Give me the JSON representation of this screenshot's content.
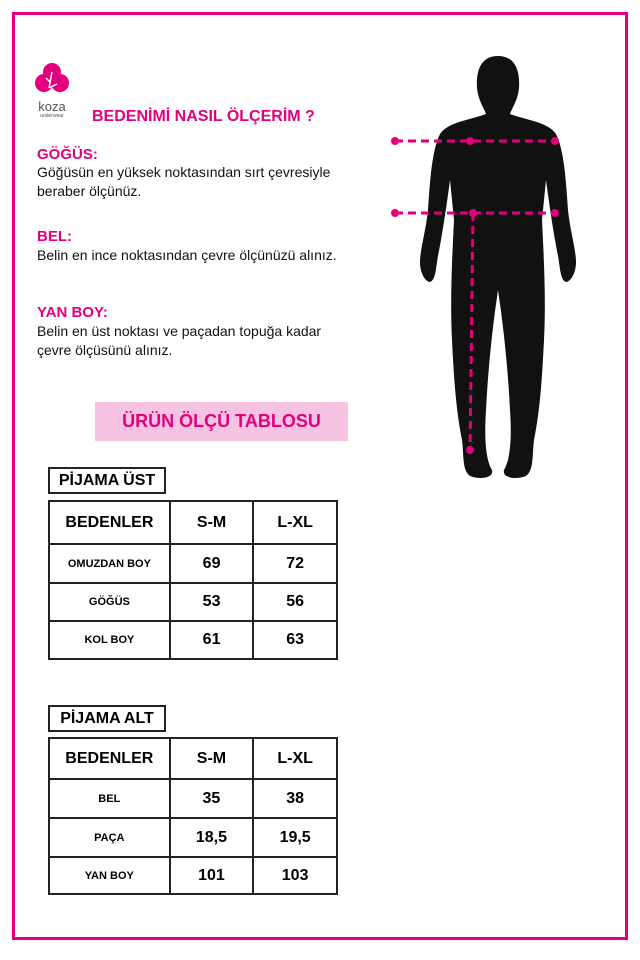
{
  "brand": {
    "logo_text": "koza",
    "logo_sub": "underwear",
    "color": "#e4007c"
  },
  "title": "BEDENİMİ NASIL ÖLÇERİM ?",
  "sections": [
    {
      "heading": "GÖĞÜS:",
      "lines": [
        "Göğüsün en yüksek noktasından sırt çevresiyle",
        "beraber ölçünüz."
      ]
    },
    {
      "heading": "BEL:",
      "lines": [
        "Belin en ince noktasından çevre ölçünüzü alınız."
      ]
    },
    {
      "heading": "YAN BOY:",
      "lines": [
        "Belin en üst noktası ve paçadan topuğa kadar",
        "çevre ölçüsünü alınız."
      ]
    }
  ],
  "banner": "ÜRÜN ÖLÇÜ TABLOSU",
  "tables": [
    {
      "title": "PİJAMA ÜST",
      "headers": [
        "BEDENLER",
        "S-M",
        "L-XL"
      ],
      "rows": [
        [
          "OMUZDAN BOY",
          "69",
          "72"
        ],
        [
          "GÖĞÜS",
          "53",
          "56"
        ],
        [
          "KOL BOY",
          "61",
          "63"
        ]
      ]
    },
    {
      "title": "PİJAMA ALT",
      "headers": [
        "BEDENLER",
        "S-M",
        "L-XL"
      ],
      "rows": [
        [
          "BEL",
          "35",
          "38"
        ],
        [
          "PAÇA",
          "18,5",
          "19,5"
        ],
        [
          "YAN BOY",
          "101",
          "103"
        ]
      ]
    }
  ]
}
